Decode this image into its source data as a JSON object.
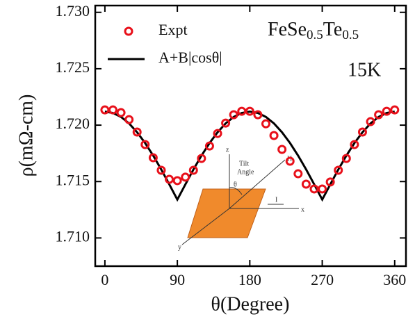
{
  "chart_data": {
    "type": "scatter",
    "x_label": "θ(Degree)",
    "y_label": "ρ(mΩ-cm)",
    "material": [
      "FeSe",
      "0.5",
      "Te",
      "0.5"
    ],
    "temperature": "15K",
    "x": [
      0,
      10,
      20,
      30,
      40,
      50,
      60,
      70,
      80,
      90,
      100,
      110,
      120,
      130,
      140,
      150,
      160,
      170,
      180,
      190,
      200,
      210,
      220,
      230,
      240,
      250,
      260,
      270,
      280,
      290,
      300,
      310,
      320,
      330,
      340,
      350,
      360
    ],
    "series": [
      {
        "name": "Expt",
        "color": "#e8101a",
        "marker": "circle",
        "values": [
          1.72135,
          1.72135,
          1.72111,
          1.72049,
          1.71939,
          1.71828,
          1.71711,
          1.716,
          1.7152,
          1.71508,
          1.71539,
          1.716,
          1.71705,
          1.71815,
          1.71926,
          1.72018,
          1.72092,
          1.72123,
          1.72123,
          1.72092,
          1.72012,
          1.71908,
          1.71785,
          1.7168,
          1.71569,
          1.71477,
          1.71434,
          1.71434,
          1.71496,
          1.716,
          1.71705,
          1.71828,
          1.71939,
          1.72031,
          1.72092,
          1.72123,
          1.72135
        ]
      },
      {
        "name": "A+B|cosθ|",
        "color": "#000000",
        "marker": "line",
        "values": [
          1.7212,
          1.72108,
          1.72073,
          1.72015,
          1.71937,
          1.71841,
          1.7173,
          1.71607,
          1.71475,
          1.7134,
          1.71475,
          1.71607,
          1.7173,
          1.71841,
          1.71937,
          1.72015,
          1.72073,
          1.72108,
          1.7212,
          1.72108,
          1.72073,
          1.72015,
          1.71937,
          1.71841,
          1.7173,
          1.71607,
          1.71475,
          1.7134,
          1.71475,
          1.71607,
          1.7173,
          1.71841,
          1.71937,
          1.72015,
          1.72073,
          1.72108,
          1.7212
        ]
      }
    ],
    "xlim": [
      -12,
      374
    ],
    "xticks": [
      0,
      90,
      180,
      270,
      360
    ],
    "ylim": [
      1.7075,
      1.7306
    ],
    "yticks": [
      {
        "value": 1.71,
        "label": "1.710"
      },
      {
        "value": 1.715,
        "label": "1.715"
      },
      {
        "value": 1.72,
        "label": "1.720"
      },
      {
        "value": 1.725,
        "label": "1.725"
      },
      {
        "value": 1.73,
        "label": "1.730"
      }
    ],
    "grid": false,
    "legend": "upper left",
    "inset_labels": {
      "z": "z",
      "tilt": "Tilt",
      "angle": "Angle",
      "theta": "θ",
      "h": "H",
      "i": "I",
      "x": "x",
      "y": "y"
    }
  }
}
